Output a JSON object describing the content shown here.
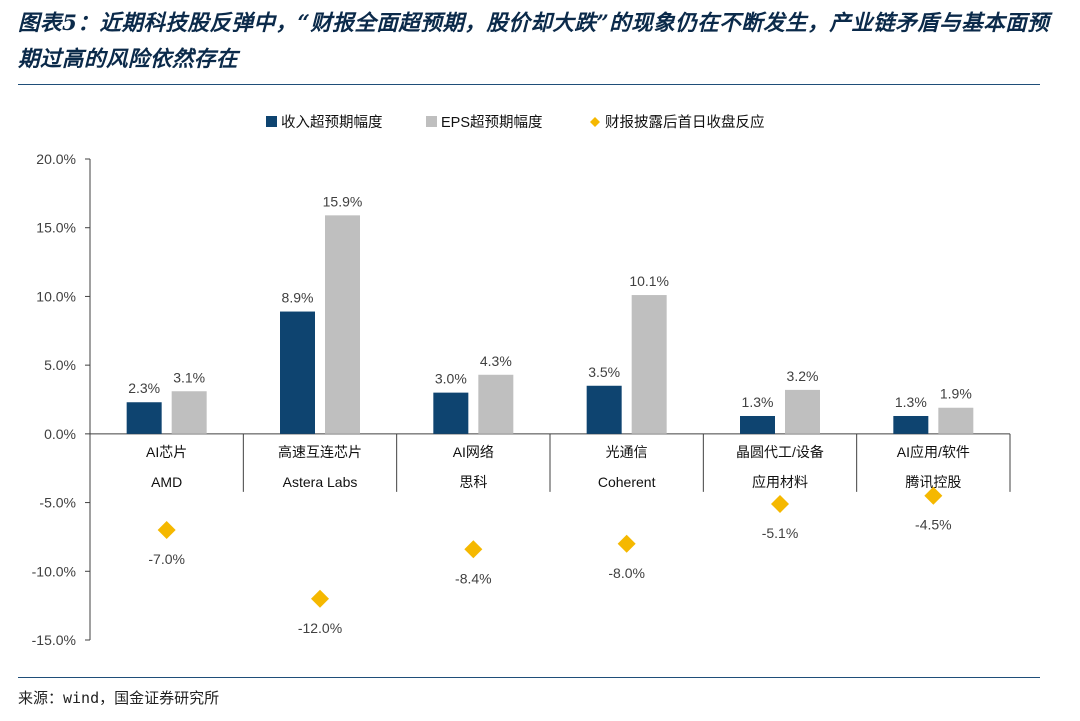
{
  "title": "图表5：近期科技股反弹中，“财报全面超预期，股价却大跌”的现象仍在不断发生，产业链矛盾与基本面预期过高的风险依然存在",
  "source": "来源：wind，国金证券研究所",
  "colors": {
    "revenue": "#0e4470",
    "eps": "#bfbfbf",
    "reaction": "#f5b800",
    "title": "#0b2a4a",
    "rule": "#1f4e79"
  },
  "chart_data": {
    "type": "bar",
    "categories": [
      [
        "AI芯片",
        "AMD"
      ],
      [
        "高速互连芯片",
        "Astera Labs"
      ],
      [
        "AI网络",
        "思科"
      ],
      [
        "光通信",
        "Coherent"
      ],
      [
        "晶圆代工/设备",
        "应用材料"
      ],
      [
        "AI应用/软件",
        "腾讯控股"
      ]
    ],
    "series": [
      {
        "name": "收入超预期幅度",
        "type": "bar",
        "values": [
          2.3,
          8.9,
          3.0,
          3.5,
          1.3,
          1.3
        ]
      },
      {
        "name": "EPS超预期幅度",
        "type": "bar",
        "values": [
          3.1,
          15.9,
          4.3,
          10.1,
          3.2,
          1.9
        ]
      },
      {
        "name": "财报披露后首日收盘反应",
        "type": "scatter",
        "marker": "diamond",
        "values": [
          -7.0,
          -12.0,
          -8.4,
          -8.0,
          -5.1,
          -4.5
        ]
      }
    ],
    "ylim": [
      -15,
      20
    ],
    "yticks": [
      20,
      15,
      10,
      5,
      0,
      -5,
      -10,
      -15
    ],
    "ytick_labels": [
      "20.0%",
      "15.0%",
      "10.0%",
      "5.0%",
      "0.0%",
      "-5.0%",
      "-10.0%",
      "-15.0%"
    ],
    "value_suffix": "%",
    "legend_position": "top-center",
    "grid": false
  }
}
